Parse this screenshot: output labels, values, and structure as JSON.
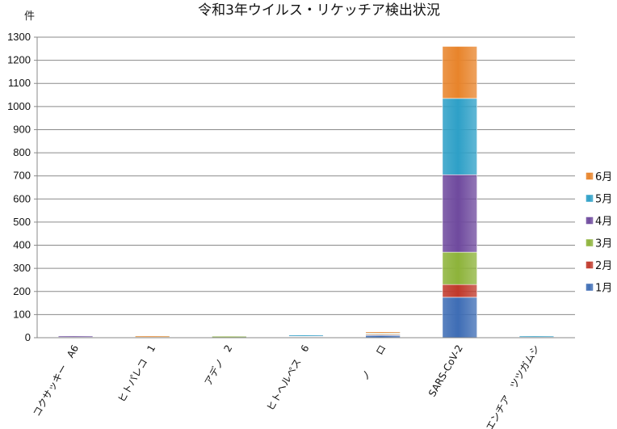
{
  "chart_data": {
    "type": "bar",
    "stacked": true,
    "title": "令和3年ウイルス・リケッチア検出状況",
    "ylabel": "件",
    "xlabel": "",
    "ylim": [
      0,
      1300
    ],
    "yticks": [
      0,
      100,
      200,
      300,
      400,
      500,
      600,
      700,
      800,
      900,
      1000,
      1100,
      1200,
      1300
    ],
    "grid": true,
    "legend_position": "right",
    "categories": [
      "コクサッキー　A6",
      "ヒトパレコ　1",
      "アデノ　2",
      "ヒトヘルペス　6",
      "ノ　　ロ",
      "SARS-CoV-2",
      "オリエンチア　ツツガムシ"
    ],
    "series": [
      {
        "name": "1月",
        "color": "#3e6db5",
        "values": [
          2,
          1,
          1,
          2,
          10,
          175,
          2
        ]
      },
      {
        "name": "2月",
        "color": "#c0392b",
        "values": [
          0,
          0,
          0,
          1,
          3,
          55,
          0
        ]
      },
      {
        "name": "3月",
        "color": "#8db33a",
        "values": [
          0,
          1,
          1,
          1,
          3,
          140,
          0
        ]
      },
      {
        "name": "4月",
        "color": "#6f4a9e",
        "values": [
          1,
          0,
          0,
          2,
          2,
          335,
          0
        ]
      },
      {
        "name": "5月",
        "color": "#2ea0c7",
        "values": [
          0,
          0,
          0,
          1,
          2,
          330,
          1
        ]
      },
      {
        "name": "6月",
        "color": "#e8842b",
        "values": [
          0,
          1,
          0,
          0,
          2,
          225,
          0
        ]
      }
    ]
  }
}
